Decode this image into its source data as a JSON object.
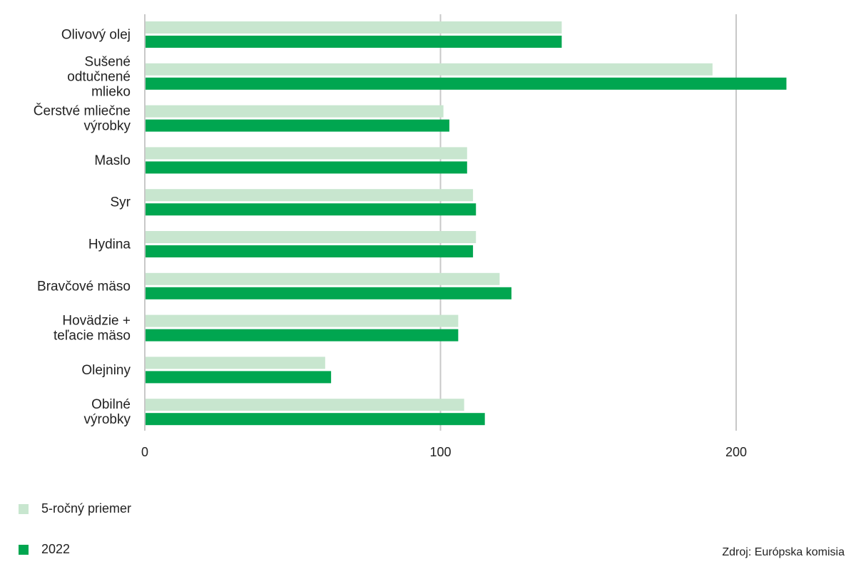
{
  "chart_data": {
    "type": "bar",
    "orientation": "horizontal",
    "categories": [
      [
        "Olivový olej"
      ],
      [
        "Sušené",
        "odtučnené",
        "mlieko"
      ],
      [
        "Čerstvé mliečne",
        "výrobky"
      ],
      [
        "Maslo"
      ],
      [
        "Syr"
      ],
      [
        "Hydina"
      ],
      [
        "Bravčové mäso"
      ],
      [
        "Hovädzie +",
        "teľacie mäso"
      ],
      [
        "Olejniny"
      ],
      [
        "Obilné",
        "výrobky"
      ]
    ],
    "series": [
      {
        "name": "5-ročný priemer",
        "color": "#c8e6cf",
        "values": [
          141,
          192,
          101,
          109,
          111,
          112,
          120,
          106,
          61,
          108
        ]
      },
      {
        "name": "2022",
        "color": "#00a650",
        "values": [
          141,
          217,
          103,
          109,
          112,
          111,
          124,
          106,
          63,
          115
        ]
      }
    ],
    "xlim": [
      0,
      230
    ],
    "xticks": [
      0,
      100,
      200
    ],
    "gridlines": [
      100,
      200
    ],
    "legend_position": "bottom-left"
  },
  "legend": {
    "avg_label": "5-ročný priemer",
    "y2022_label": "2022"
  },
  "source": "Zdroj: Európska komisia"
}
